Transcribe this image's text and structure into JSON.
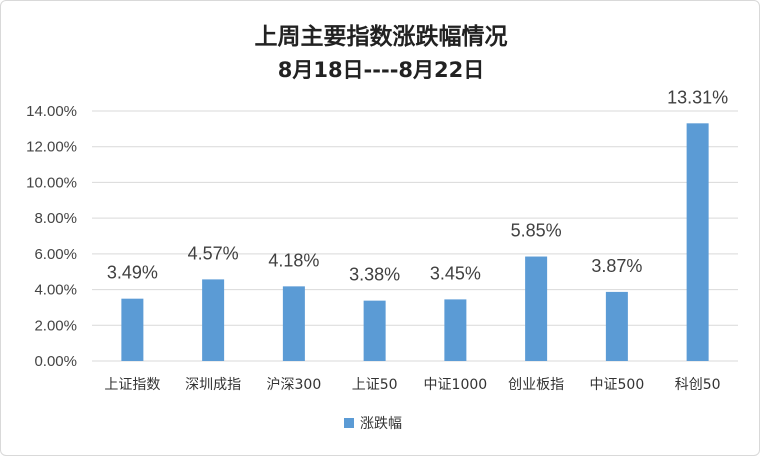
{
  "chart_data": {
    "type": "bar",
    "title": "上周主要指数涨跌幅情况",
    "subtitle": "8月18日----8月22日",
    "categories": [
      "上证指数",
      "深圳成指",
      "沪深300",
      "上证50",
      "中证1000",
      "创业板指",
      "中证500",
      "科创50"
    ],
    "series": [
      {
        "name": "涨跌幅",
        "values": [
          3.49,
          4.57,
          4.18,
          3.38,
          3.45,
          5.85,
          3.87,
          13.31
        ],
        "labels": [
          "3.49%",
          "4.57%",
          "4.18%",
          "3.38%",
          "3.45%",
          "5.85%",
          "3.87%",
          "13.31%"
        ]
      }
    ],
    "y_ticks": [
      "0.00%",
      "2.00%",
      "4.00%",
      "6.00%",
      "8.00%",
      "10.00%",
      "12.00%",
      "14.00%"
    ],
    "ylim": [
      0,
      14
    ],
    "grid": true,
    "legend_position": "bottom",
    "colors": {
      "bar": "#5b9bd5",
      "grid": "#d9d9d9"
    }
  }
}
